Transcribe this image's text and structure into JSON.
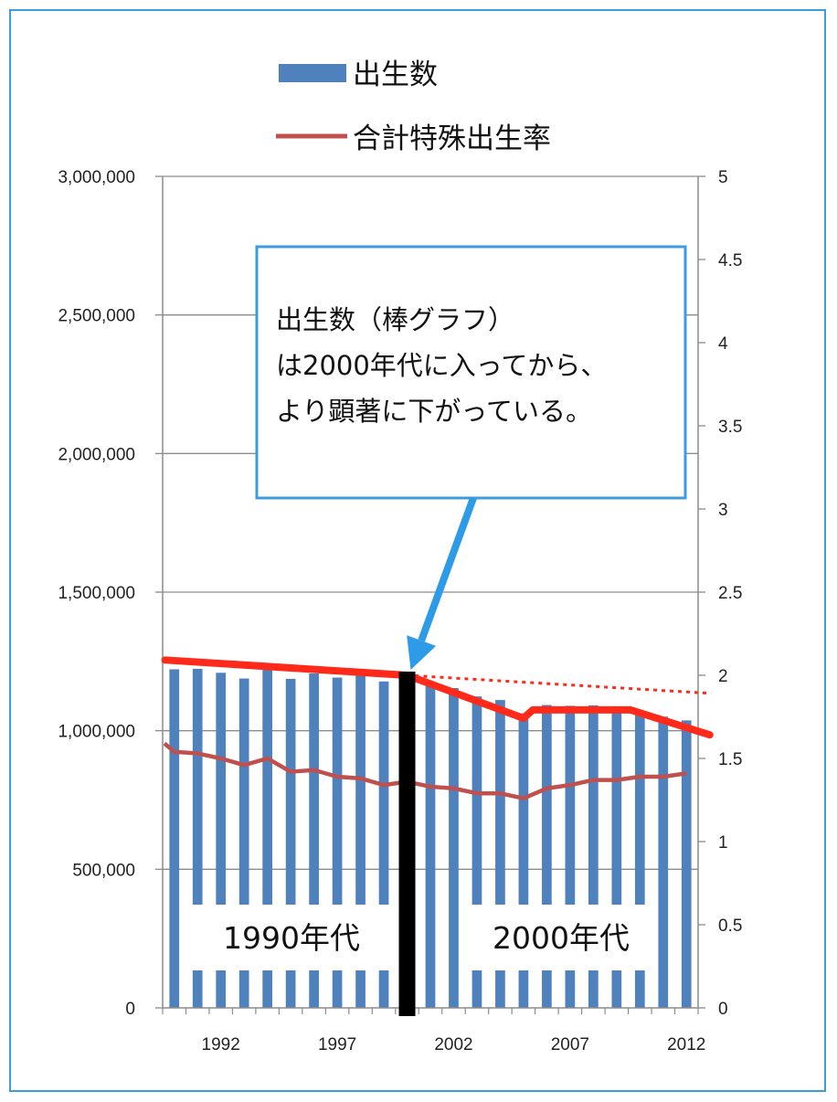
{
  "chart_data": {
    "type": "bar",
    "x": [
      1990,
      1991,
      1992,
      1993,
      1994,
      1995,
      1996,
      1997,
      1998,
      1999,
      2000,
      2001,
      2002,
      2003,
      2004,
      2005,
      2006,
      2007,
      2008,
      2009,
      2010,
      2011,
      2012
    ],
    "series": [
      {
        "name": "出生数",
        "type": "bar",
        "axis": "left",
        "color": "#4f81bd",
        "values": [
          1221585,
          1223245,
          1208989,
          1188282,
          1238328,
          1187064,
          1206555,
          1191665,
          1203147,
          1177669,
          1190547,
          1170662,
          1153855,
          1123610,
          1110721,
          1062530,
          1092674,
          1089818,
          1091156,
          1070035,
          1071304,
          1050806,
          1037231
        ]
      },
      {
        "name": "合計特殊出生率",
        "type": "line",
        "axis": "right",
        "color": "#c0504d",
        "values": [
          1.54,
          1.53,
          1.5,
          1.46,
          1.5,
          1.42,
          1.43,
          1.39,
          1.38,
          1.34,
          1.36,
          1.33,
          1.32,
          1.29,
          1.29,
          1.26,
          1.32,
          1.34,
          1.37,
          1.37,
          1.39,
          1.39,
          1.41
        ]
      }
    ],
    "x_tick_labels": [
      "1992",
      "1997",
      "2002",
      "2007",
      "2012"
    ],
    "x_tick_years": [
      1992,
      1997,
      2002,
      2007,
      2012
    ],
    "y_left": {
      "min": 0,
      "max": 3000000,
      "step": 500000,
      "tick_labels": [
        "0",
        "500,000",
        "1,000,000",
        "1,500,000",
        "2,000,000",
        "2,500,000",
        "3,000,000"
      ]
    },
    "y_right": {
      "min": 0,
      "max": 5,
      "step": 0.5,
      "tick_labels": [
        "0",
        "0.5",
        "1",
        "1.5",
        "2",
        "2.5",
        "3",
        "3.5",
        "4",
        "4.5",
        "5"
      ]
    },
    "grid": true,
    "legend": {
      "position": "top"
    },
    "annotations": {
      "trend_line": {
        "color": "#ff2a1a",
        "points": [
          [
            1989.6,
            1255000
          ],
          [
            2000,
            1200000
          ],
          [
            2005,
            1045000
          ],
          [
            2005.4,
            1075000
          ],
          [
            2009.6,
            1075000
          ],
          [
            2013,
            985000
          ]
        ]
      },
      "dotted_extension": {
        "color": "#ff2a1a",
        "from": [
          2000,
          1200000
        ],
        "to": [
          2013,
          1135000
        ]
      },
      "divider": {
        "year": 2000,
        "color": "#000000"
      },
      "label_1990s": "1990年代",
      "label_2000s": "2000年代",
      "callout": {
        "lines": [
          "出生数（棒グラフ）",
          "は2000年代に入ってから、",
          "より顕著に下がっている。"
        ],
        "border_color": "#3d9be0",
        "arrow_color": "#2e9be8"
      }
    }
  }
}
